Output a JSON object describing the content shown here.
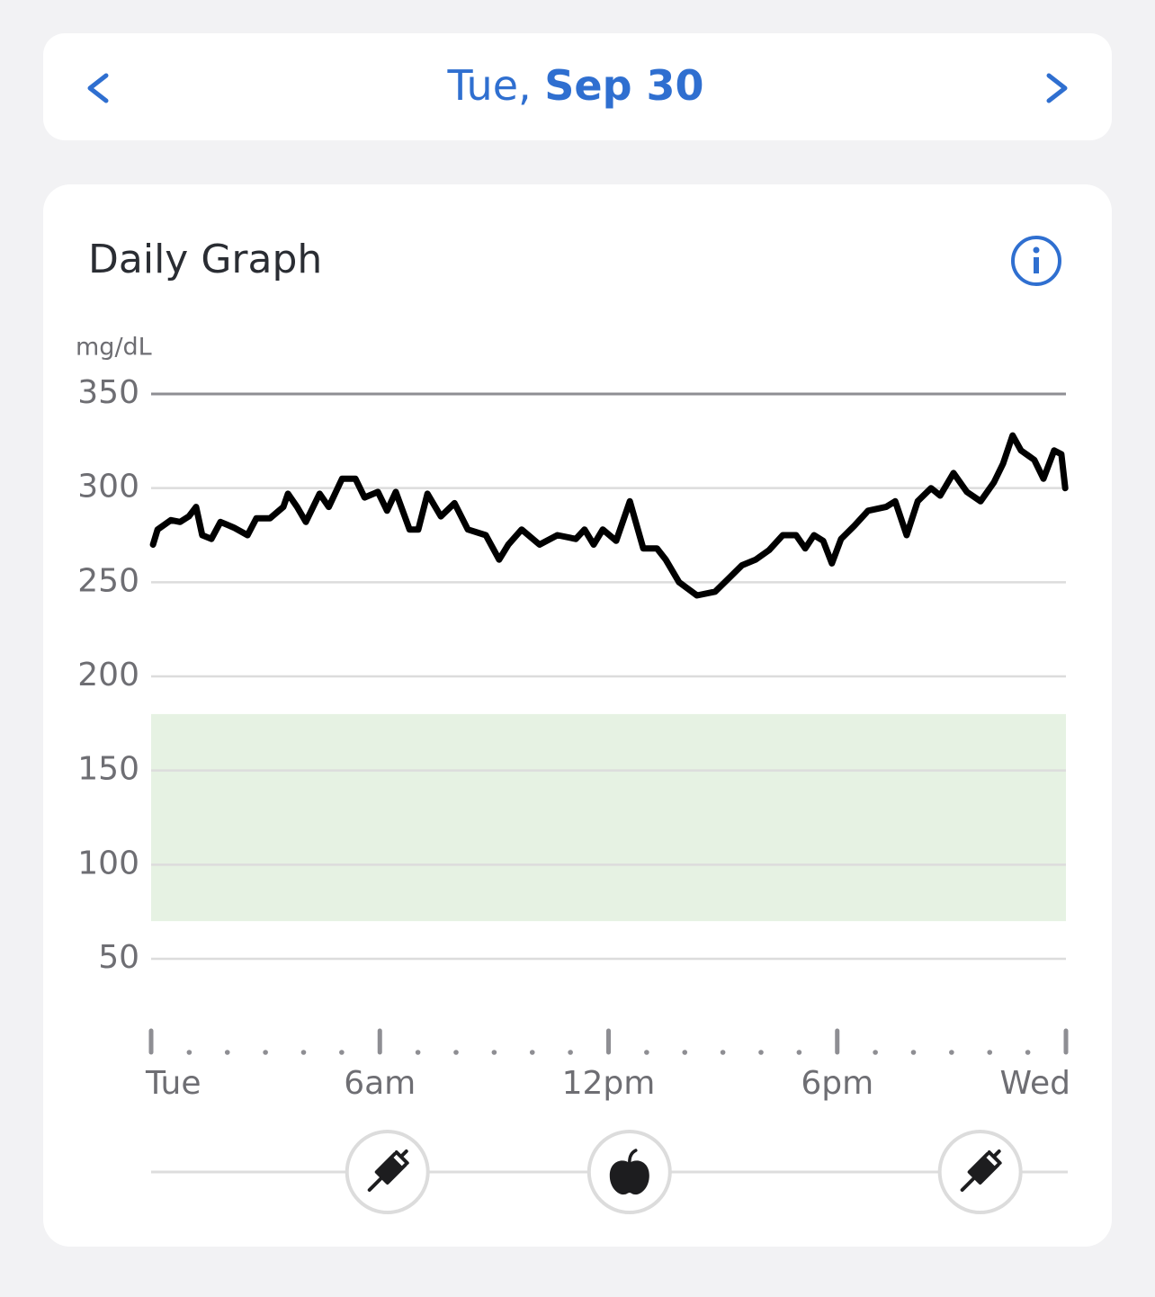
{
  "header": {
    "weekday": "Tue,",
    "date": "Sep 30"
  },
  "chart_data": {
    "type": "line",
    "title": "Daily Graph",
    "y_unit": "mg/dL",
    "x": [
      0.05,
      0.17,
      0.52,
      0.76,
      0.99,
      1.18,
      1.34,
      1.58,
      1.82,
      2.17,
      2.53,
      2.76,
      3.12,
      3.47,
      3.59,
      3.83,
      4.06,
      4.42,
      4.66,
      5.01,
      5.36,
      5.6,
      5.95,
      6.19,
      6.42,
      6.78,
      7.01,
      7.25,
      7.6,
      7.96,
      8.31,
      8.78,
      9.13,
      9.37,
      9.72,
      10.19,
      10.66,
      11.14,
      11.37,
      11.61,
      11.85,
      12.2,
      12.56,
      12.91,
      13.27,
      13.5,
      13.85,
      14.32,
      14.8,
      15.15,
      15.5,
      15.86,
      16.21,
      16.57,
      16.92,
      17.16,
      17.39,
      17.63,
      17.86,
      18.1,
      18.45,
      18.81,
      19.28,
      19.52,
      19.82,
      20.11,
      20.46,
      20.7,
      21.05,
      21.4,
      21.76,
      22.11,
      22.35,
      22.6,
      22.82,
      23.17,
      23.41,
      23.69,
      23.88,
      23.98
    ],
    "values": [
      270,
      278,
      283,
      282,
      285,
      290,
      275,
      273,
      282,
      279,
      275,
      284,
      284,
      290,
      297,
      290,
      282,
      297,
      290,
      305,
      305,
      295,
      298,
      288,
      298,
      278,
      278,
      297,
      285,
      292,
      278,
      275,
      262,
      270,
      278,
      270,
      275,
      273,
      278,
      270,
      278,
      272,
      293,
      268,
      268,
      262,
      250,
      243,
      245,
      252,
      259,
      262,
      267,
      275,
      275,
      268,
      275,
      272,
      260,
      273,
      280,
      288,
      290,
      293,
      275,
      293,
      300,
      296,
      308,
      298,
      293,
      303,
      313,
      328,
      320,
      315,
      305,
      320,
      318,
      300
    ],
    "color": "#000000",
    "target_range": [
      70,
      180
    ],
    "target_color": "#e6f2e3",
    "xlim": [
      0,
      24
    ],
    "xticks": [
      {
        "value": 0,
        "label": "Tue"
      },
      {
        "value": 6,
        "label": "6am"
      },
      {
        "value": 12,
        "label": "12pm"
      },
      {
        "value": 18,
        "label": "6pm"
      },
      {
        "value": 24,
        "label": "Wed"
      }
    ],
    "xminorticks": [
      1,
      2,
      3,
      4,
      5,
      7,
      8,
      9,
      10,
      11,
      13,
      14,
      15,
      16,
      17,
      19,
      20,
      21,
      22,
      23
    ],
    "ylim": [
      50,
      350
    ],
    "yticks": [
      50,
      100,
      150,
      200,
      250,
      300,
      350
    ],
    "grid": true,
    "events": [
      {
        "x": 6.2,
        "kind": "insulin"
      },
      {
        "x": 12.55,
        "kind": "food"
      },
      {
        "x": 21.75,
        "kind": "insulin"
      }
    ]
  }
}
